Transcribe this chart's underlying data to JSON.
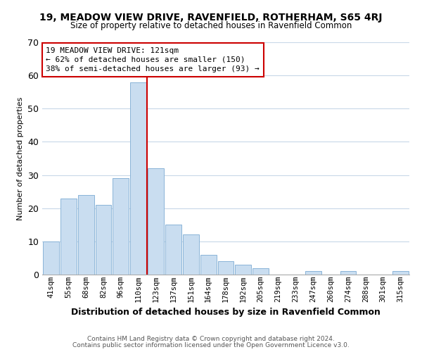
{
  "title": "19, MEADOW VIEW DRIVE, RAVENFIELD, ROTHERHAM, S65 4RJ",
  "subtitle": "Size of property relative to detached houses in Ravenfield Common",
  "xlabel": "Distribution of detached houses by size in Ravenfield Common",
  "ylabel": "Number of detached properties",
  "bar_labels": [
    "41sqm",
    "55sqm",
    "68sqm",
    "82sqm",
    "96sqm",
    "110sqm",
    "123sqm",
    "137sqm",
    "151sqm",
    "164sqm",
    "178sqm",
    "192sqm",
    "205sqm",
    "219sqm",
    "233sqm",
    "247sqm",
    "260sqm",
    "274sqm",
    "288sqm",
    "301sqm",
    "315sqm"
  ],
  "bar_values": [
    10,
    23,
    24,
    21,
    29,
    58,
    32,
    15,
    12,
    6,
    4,
    3,
    2,
    0,
    0,
    1,
    0,
    1,
    0,
    0,
    1
  ],
  "bar_color": "#c9ddf0",
  "bar_edge_color": "#8ab4d8",
  "vline_color": "#cc0000",
  "ylim": [
    0,
    70
  ],
  "yticks": [
    0,
    10,
    20,
    30,
    40,
    50,
    60,
    70
  ],
  "annotation_title": "19 MEADOW VIEW DRIVE: 121sqm",
  "annotation_line1": "← 62% of detached houses are smaller (150)",
  "annotation_line2": "38% of semi-detached houses are larger (93) →",
  "footer1": "Contains HM Land Registry data © Crown copyright and database right 2024.",
  "footer2": "Contains public sector information licensed under the Open Government Licence v3.0.",
  "bg_color": "#ffffff",
  "grid_color": "#c8d8e8",
  "title_fontsize": 10,
  "subtitle_fontsize": 8.5,
  "xlabel_fontsize": 9,
  "ylabel_fontsize": 8,
  "tick_fontsize": 7.5,
  "annotation_fontsize": 8,
  "footer_fontsize": 6.5
}
